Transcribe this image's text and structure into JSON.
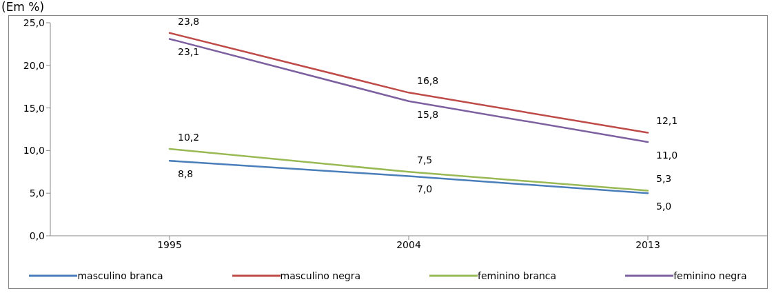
{
  "chart_data": {
    "type": "line",
    "title": "(Em %)",
    "categories": [
      "1995",
      "2004",
      "2013"
    ],
    "series": [
      {
        "name": "masculino branca",
        "color": "#4a7ebb",
        "values": [
          8.8,
          7.0,
          5.0
        ],
        "value_labels": [
          "8,8",
          "7,0",
          "5,0"
        ]
      },
      {
        "name": "masculino negra",
        "color": "#be4b48",
        "values": [
          23.8,
          16.8,
          12.1
        ],
        "value_labels": [
          "23,8",
          "16,8",
          "12,1"
        ]
      },
      {
        "name": "feminino branca",
        "color": "#98b954",
        "values": [
          10.2,
          7.5,
          5.3
        ],
        "value_labels": [
          "10,2",
          "7,5",
          "5,3"
        ]
      },
      {
        "name": "feminino negra",
        "color": "#7d60a0",
        "values": [
          23.1,
          15.8,
          11.0
        ],
        "value_labels": [
          "23,1",
          "15,8",
          "11,0"
        ]
      }
    ],
    "ylim": [
      0,
      25
    ],
    "yticks": [
      {
        "value": 0,
        "label": "0,0"
      },
      {
        "value": 5,
        "label": "5,0"
      },
      {
        "value": 10,
        "label": "10,0"
      },
      {
        "value": 15,
        "label": "15,0"
      },
      {
        "value": 20,
        "label": "20,0"
      },
      {
        "value": 25,
        "label": "25,0"
      }
    ],
    "grid": false,
    "legend": "bottom",
    "marker": "none",
    "line_style": "solid"
  }
}
